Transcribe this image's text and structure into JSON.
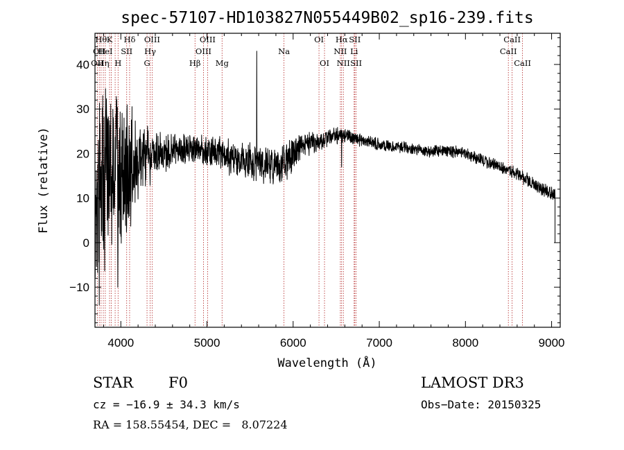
{
  "chart_data": {
    "type": "line",
    "title": "spec-57107-HD103827N055449B02_sp16-239.fits",
    "xlabel": "Wavelength (Å)",
    "ylabel": "Flux (relative)",
    "xlim": [
      3700,
      9100
    ],
    "ylim": [
      -19,
      47
    ],
    "xticks": [
      4000,
      5000,
      6000,
      7000,
      8000,
      9000
    ],
    "yticks": [
      -10,
      0,
      10,
      20,
      30,
      40
    ],
    "series": [
      {
        "name": "flux",
        "anchors_x": [
          3700,
          3720,
          3760,
          3800,
          3850,
          3900,
          3950,
          4000,
          4050,
          4100,
          4150,
          4200,
          4250,
          4300,
          4400,
          4500,
          4600,
          4700,
          4800,
          4900,
          5000,
          5100,
          5200,
          5300,
          5400,
          5500,
          5600,
          5700,
          5800,
          5900,
          6000,
          6100,
          6200,
          6300,
          6400,
          6500,
          6600,
          6700,
          6800,
          6900,
          7000,
          7200,
          7400,
          7600,
          7800,
          8000,
          8200,
          8400,
          8600,
          8800,
          9000
        ],
        "anchors_y": [
          0,
          8,
          12,
          14,
          15,
          16,
          16,
          15,
          16,
          17,
          17.5,
          18,
          18.5,
          19,
          19.5,
          20,
          20.5,
          21,
          21,
          21,
          20.5,
          20,
          19.5,
          19,
          18.5,
          18,
          18,
          18,
          18,
          18.5,
          20,
          21.5,
          22.5,
          23,
          23.5,
          24,
          24,
          23.5,
          23,
          22.5,
          22,
          21.5,
          21,
          20.5,
          20.5,
          20,
          18.5,
          17,
          15.5,
          13,
          11
        ],
        "noise_x": [
          3700,
          3800,
          3900,
          4000,
          4100,
          4200,
          4300,
          4400,
          4600,
          4800,
          5000,
          5500,
          5900,
          6000,
          6300,
          6800,
          7500,
          9000
        ],
        "noise_amp": [
          14,
          17,
          16,
          14,
          12,
          8,
          6,
          4,
          3,
          2.6,
          2.8,
          3.2,
          3.5,
          3,
          1.6,
          1.1,
          1.0,
          1.2
        ],
        "spikes": [
          {
            "x": 5577,
            "y": 43
          },
          {
            "x": 6563,
            "y": 17
          },
          {
            "x": 3750,
            "y": -14
          },
          {
            "x": 3790,
            "y": 33
          },
          {
            "x": 3965,
            "y": -10
          }
        ],
        "end_value": 0
      }
    ],
    "spectral_lines": [
      {
        "x": 3727,
        "label": "OII",
        "row": 2
      },
      {
        "x": 3750,
        "label": "OII",
        "row": 1
      },
      {
        "x": 3771,
        "label": "Hθ",
        "row": 0
      },
      {
        "x": 3797,
        "label": "Hη",
        "row": 2
      },
      {
        "x": 3820,
        "label": "HeI",
        "row": 1
      },
      {
        "x": 3869,
        "label": "K",
        "row": 0
      },
      {
        "x": 3889,
        "label": "",
        "row": 0
      },
      {
        "x": 3934,
        "label": "",
        "row": 0
      },
      {
        "x": 3968,
        "label": "H",
        "row": 2
      },
      {
        "x": 4068,
        "label": "SII",
        "row": 1
      },
      {
        "x": 4102,
        "label": "Hδ",
        "row": 0
      },
      {
        "x": 4304,
        "label": "G",
        "row": 2
      },
      {
        "x": 4340,
        "label": "Hγ",
        "row": 1
      },
      {
        "x": 4363,
        "label": "OIII",
        "row": 0
      },
      {
        "x": 4861,
        "label": "Hβ",
        "row": 2
      },
      {
        "x": 4959,
        "label": "OIII",
        "row": 1
      },
      {
        "x": 5007,
        "label": "OIII",
        "row": 0
      },
      {
        "x": 5175,
        "label": "Mg",
        "row": 2
      },
      {
        "x": 5894,
        "label": "Na",
        "row": 1
      },
      {
        "x": 6300,
        "label": "OI",
        "row": 0
      },
      {
        "x": 6364,
        "label": "OI",
        "row": 2
      },
      {
        "x": 6548,
        "label": "NII",
        "row": 1
      },
      {
        "x": 6563,
        "label": "Hα",
        "row": 0
      },
      {
        "x": 6583,
        "label": "NII",
        "row": 2
      },
      {
        "x": 6708,
        "label": "Li",
        "row": 1
      },
      {
        "x": 6716,
        "label": "SII",
        "row": 0
      },
      {
        "x": 6731,
        "label": "SII",
        "row": 2
      },
      {
        "x": 8498,
        "label": "CaII",
        "row": 1
      },
      {
        "x": 8542,
        "label": "CaII",
        "row": 0
      },
      {
        "x": 8662,
        "label": "CaII",
        "row": 2
      }
    ]
  },
  "info": {
    "class": "STAR",
    "subclass": "F0",
    "survey": "LAMOST DR3",
    "cz": "cz = −16.9 ± 34.3 km/s",
    "obs_date": "Obs−Date: 20150325",
    "coords": "RA = 158.55454, DEC =   8.07224"
  },
  "colors": {
    "line_marker": "#b22222",
    "spectrum": "#000000",
    "axes": "#000000"
  }
}
